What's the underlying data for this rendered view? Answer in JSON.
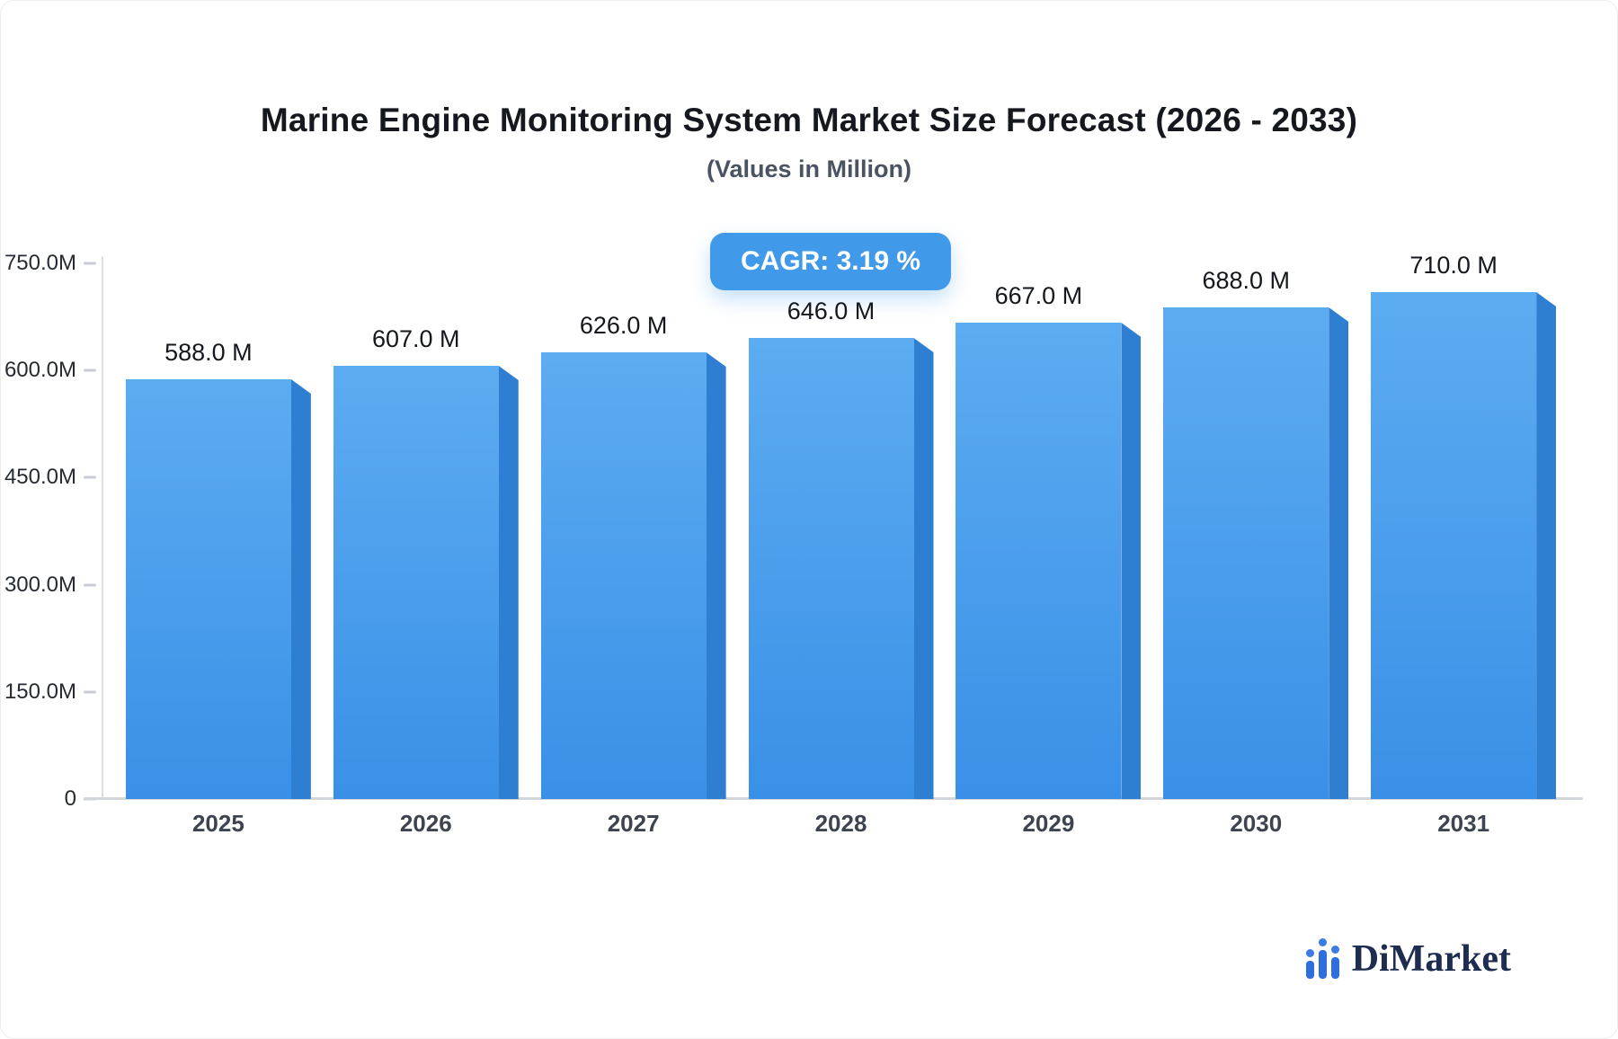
{
  "chart": {
    "title": "Marine Engine Monitoring System Market Size Forecast (2026 - 2033)",
    "subtitle": "(Values in Million)",
    "cagr_label": "CAGR: 3.19 %"
  },
  "logo": {
    "text": "DiMarket",
    "icon": "bar-chart-dots-icon"
  },
  "chart_data": {
    "type": "bar",
    "title": "Marine Engine Monitoring System Market Size Forecast (2026 - 2033)",
    "subtitle": "(Values in Million)",
    "cagr_text": "CAGR: 3.19 %",
    "categories": [
      "2025",
      "2026",
      "2027",
      "2028",
      "2029",
      "2030",
      "2031"
    ],
    "values": [
      588.0,
      607.0,
      626.0,
      646.0,
      667.0,
      688.0,
      710.0
    ],
    "value_labels": [
      "588.0 M",
      "607.0 M",
      "626.0 M",
      "646.0 M",
      "667.0 M",
      "688.0 M",
      "710.0 M"
    ],
    "xlabel": "",
    "ylabel": "",
    "ylim": [
      0,
      750
    ],
    "yticks": [
      {
        "value": 750,
        "label": "750.0M"
      },
      {
        "value": 600,
        "label": "600.0M"
      },
      {
        "value": 450,
        "label": "450.0M"
      },
      {
        "value": 300,
        "label": "300.0M"
      },
      {
        "value": 150,
        "label": "150.0M"
      },
      {
        "value": 0,
        "label": "0"
      }
    ],
    "grid": false,
    "legend": false,
    "colors": {
      "bar_face_top": "#5cacf1",
      "bar_face_bottom": "#3a90e7",
      "bar_side": "#2e7fd2",
      "badge_bg": "#419ae9",
      "axis_line": "#d2d5da",
      "title_text": "#15181e",
      "value_label_text": "#14171c"
    }
  }
}
